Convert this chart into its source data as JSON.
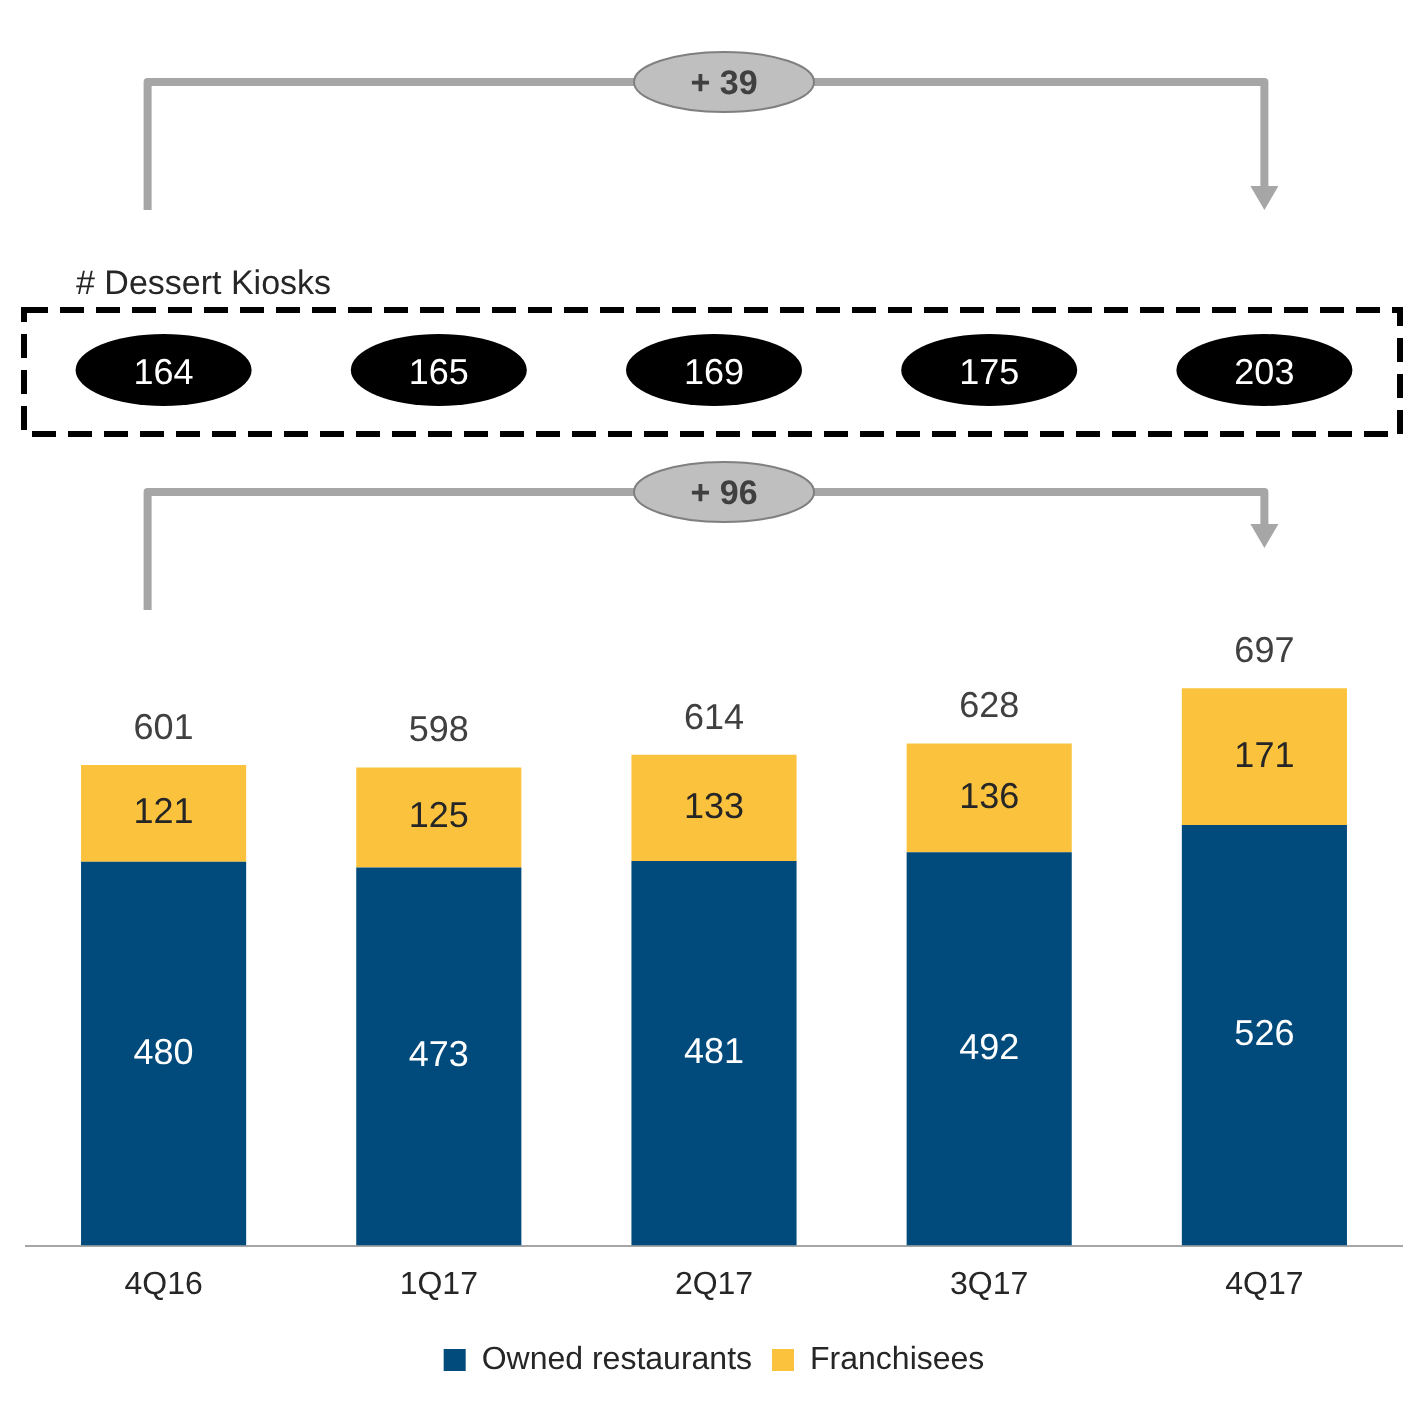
{
  "chart_data": {
    "type": "bar",
    "stacked": true,
    "categories": [
      "4Q16",
      "1Q17",
      "2Q17",
      "3Q17",
      "4Q17"
    ],
    "series": [
      {
        "name": "Owned restaurants",
        "color": "#004a7c",
        "values": [
          480,
          473,
          481,
          492,
          526
        ]
      },
      {
        "name": "Franchisees",
        "color": "#fbc33d",
        "values": [
          121,
          125,
          133,
          136,
          171
        ]
      }
    ],
    "data_labels": true,
    "totals": [
      "601",
      "598",
      "614",
      "628",
      "697"
    ],
    "legend": "bottom",
    "grid": false,
    "annotations": [
      "# Dessert Kiosks",
      "+ 39",
      "164",
      "165",
      "169",
      "175",
      "203",
      "+ 96"
    ]
  }
}
